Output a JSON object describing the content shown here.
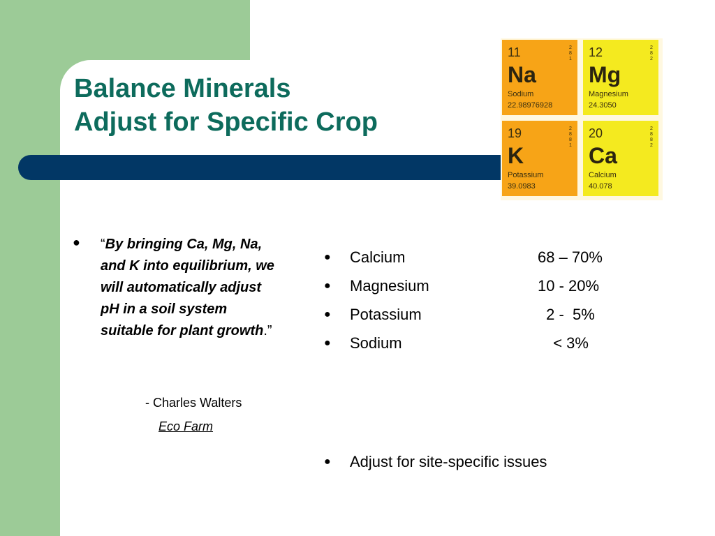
{
  "slide": {
    "title_line1": "Balance Minerals",
    "title_line2": "Adjust for Specific Crop",
    "colors": {
      "title": "#0d6b5c",
      "bar": "#023765",
      "side_panel": "#9ccb97"
    }
  },
  "periodic_tiles": [
    {
      "number": "11",
      "symbol": "Na",
      "name": "Sodium",
      "mass": "22.98976928",
      "shells": "2 8 1",
      "color": "orange"
    },
    {
      "number": "12",
      "symbol": "Mg",
      "name": "Magnesium",
      "mass": "24.3050",
      "shells": "2 8 2",
      "color": "yellow"
    },
    {
      "number": "19",
      "symbol": "K",
      "name": "Potassium",
      "mass": "39.0983",
      "shells": "2 8 8 1",
      "color": "orange"
    },
    {
      "number": "20",
      "symbol": "Ca",
      "name": "Calcium",
      "mass": "40.078",
      "shells": "2 8 8 2",
      "color": "yellow"
    }
  ],
  "quote": {
    "open_mark": "“",
    "text": "By bringing Ca, Mg, Na, and K into equilibrium, we will automatically adjust pH in a soil system suitable for plant growth",
    "end": ".",
    "close_mark": "”",
    "author": "- Charles Walters",
    "source": "Eco Farm"
  },
  "minerals": [
    {
      "name": "Calcium",
      "range": "68 – 70%"
    },
    {
      "name": "Magnesium",
      "range": "10 - 20%"
    },
    {
      "name": "Potassium",
      "range": " 2 -  5%"
    },
    {
      "name": "Sodium",
      "range": "  < 3%"
    }
  ],
  "extra_bullet": "Adjust for site-specific issues"
}
